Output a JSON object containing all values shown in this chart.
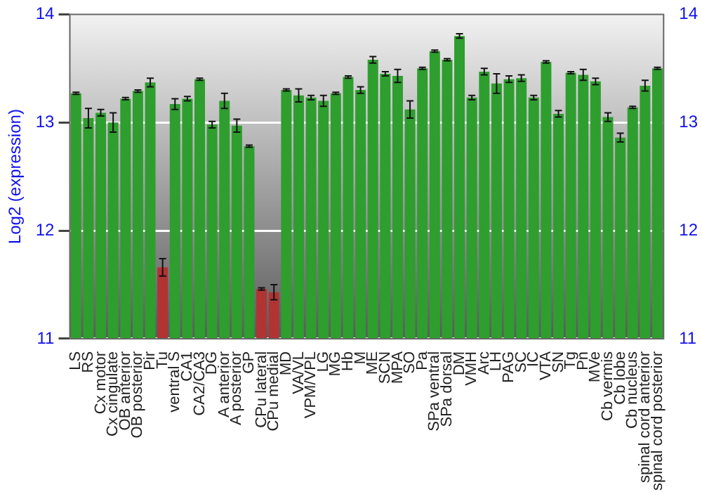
{
  "chart_data": {
    "type": "bar",
    "ylabel": "Log2 (expression)",
    "categories": [
      "LS",
      "RS",
      "Cx motor",
      "Cx cingulate",
      "OB anterior",
      "OB posterior",
      "Pir",
      "Tu",
      "ventral S",
      "CA1",
      "CA2/CA3",
      "DG",
      "A anterior",
      "A posterior",
      "GP",
      "CPu lateral",
      "CPu medial",
      "MD",
      "VA/VL",
      "VPM/VPL",
      "LG",
      "MG",
      "Hb",
      "M",
      "ME",
      "SCN",
      "MPA",
      "SO",
      "Pa",
      "SPa ventral",
      "SPa dorsal",
      "DM",
      "VMH",
      "Arc",
      "LH",
      "PAG",
      "SC",
      "IC",
      "VTA",
      "SN",
      "Tg",
      "Pn",
      "MVe",
      "Cb vermis",
      "Cb lobe",
      "Cb nucleus",
      "spinal cord anterior",
      "spinal cord posterior"
    ],
    "values": [
      13.27,
      13.04,
      13.09,
      13.0,
      13.22,
      13.29,
      13.37,
      11.66,
      13.17,
      13.22,
      13.4,
      12.98,
      13.2,
      12.97,
      12.78,
      11.46,
      11.43,
      13.3,
      13.25,
      13.23,
      13.2,
      13.27,
      13.42,
      13.3,
      13.58,
      13.45,
      13.43,
      13.12,
      13.5,
      13.66,
      13.58,
      13.8,
      13.23,
      13.47,
      13.36,
      13.4,
      13.41,
      13.23,
      13.56,
      13.08,
      13.46,
      13.44,
      13.38,
      13.05,
      12.86,
      13.14,
      13.34,
      13.5
    ],
    "errors": [
      0.01,
      0.09,
      0.03,
      0.09,
      0.01,
      0.01,
      0.04,
      0.08,
      0.05,
      0.02,
      0.01,
      0.03,
      0.07,
      0.06,
      0.01,
      0.01,
      0.07,
      0.01,
      0.06,
      0.02,
      0.05,
      0.01,
      0.01,
      0.03,
      0.03,
      0.02,
      0.06,
      0.08,
      0.01,
      0.01,
      0.01,
      0.02,
      0.02,
      0.03,
      0.09,
      0.03,
      0.03,
      0.02,
      0.01,
      0.03,
      0.01,
      0.05,
      0.03,
      0.04,
      0.04,
      0.01,
      0.05,
      0.01
    ],
    "colors": [
      "#2e9e2e",
      "#2e9e2e",
      "#2e9e2e",
      "#2e9e2e",
      "#2e9e2e",
      "#2e9e2e",
      "#2e9e2e",
      "#b03434",
      "#2e9e2e",
      "#2e9e2e",
      "#2e9e2e",
      "#2e9e2e",
      "#2e9e2e",
      "#2e9e2e",
      "#2e9e2e",
      "#b03434",
      "#b03434",
      "#2e9e2e",
      "#2e9e2e",
      "#2e9e2e",
      "#2e9e2e",
      "#2e9e2e",
      "#2e9e2e",
      "#2e9e2e",
      "#2e9e2e",
      "#2e9e2e",
      "#2e9e2e",
      "#2e9e2e",
      "#2e9e2e",
      "#2e9e2e",
      "#2e9e2e",
      "#2e9e2e",
      "#2e9e2e",
      "#2e9e2e",
      "#2e9e2e",
      "#2e9e2e",
      "#2e9e2e",
      "#2e9e2e",
      "#2e9e2e",
      "#2e9e2e",
      "#2e9e2e",
      "#2e9e2e",
      "#2e9e2e",
      "#2e9e2e",
      "#2e9e2e",
      "#2e9e2e",
      "#2e9e2e",
      "#2e9e2e"
    ],
    "ylim": [
      11,
      14
    ],
    "yticks": [
      11,
      12,
      13,
      14
    ],
    "y2lim": [
      11,
      14
    ],
    "y2ticks": [
      11,
      12,
      13,
      14
    ],
    "grid": "y",
    "legend": false
  }
}
